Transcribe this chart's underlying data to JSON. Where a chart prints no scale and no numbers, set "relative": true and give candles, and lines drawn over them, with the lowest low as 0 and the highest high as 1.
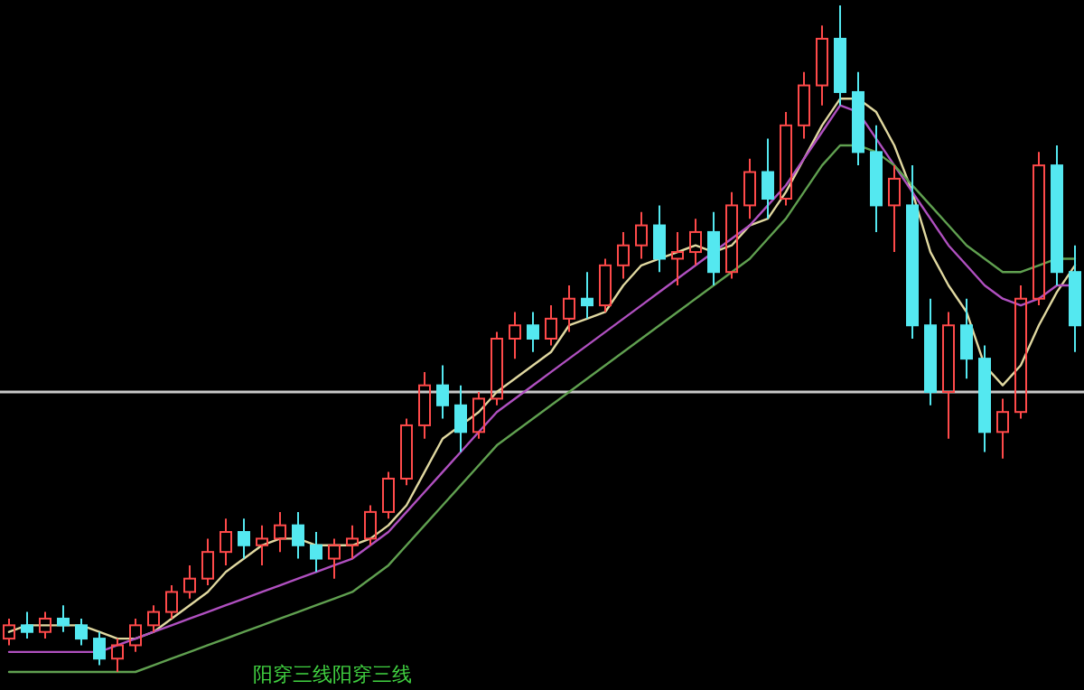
{
  "chart_data": {
    "type": "candlestick",
    "relative": true,
    "categories": [
      null,
      null,
      null,
      null,
      null,
      null,
      null,
      null,
      null,
      null,
      null,
      null,
      null,
      null,
      null,
      null,
      null,
      null,
      null,
      null,
      null,
      null,
      null,
      null,
      null,
      null,
      null,
      null,
      null,
      null,
      null,
      null,
      null,
      null,
      null,
      null,
      null,
      null,
      null,
      null,
      null,
      null,
      null,
      null,
      null,
      null,
      null,
      null,
      null,
      null,
      null,
      null,
      null,
      null,
      null,
      null,
      null,
      null,
      null,
      null
    ],
    "ohlc": [
      [
        0.05,
        0.08,
        0.04,
        0.07
      ],
      [
        0.07,
        0.09,
        0.05,
        0.06
      ],
      [
        0.06,
        0.09,
        0.05,
        0.08
      ],
      [
        0.08,
        0.1,
        0.06,
        0.07
      ],
      [
        0.07,
        0.08,
        0.04,
        0.05
      ],
      [
        0.05,
        0.06,
        0.01,
        0.02
      ],
      [
        0.02,
        0.05,
        0.0,
        0.04
      ],
      [
        0.04,
        0.08,
        0.03,
        0.07
      ],
      [
        0.07,
        0.1,
        0.06,
        0.09
      ],
      [
        0.09,
        0.13,
        0.08,
        0.12
      ],
      [
        0.12,
        0.16,
        0.11,
        0.14
      ],
      [
        0.14,
        0.2,
        0.13,
        0.18
      ],
      [
        0.18,
        0.23,
        0.16,
        0.21
      ],
      [
        0.21,
        0.23,
        0.17,
        0.19
      ],
      [
        0.19,
        0.22,
        0.16,
        0.2
      ],
      [
        0.2,
        0.24,
        0.18,
        0.22
      ],
      [
        0.22,
        0.24,
        0.17,
        0.19
      ],
      [
        0.19,
        0.21,
        0.15,
        0.17
      ],
      [
        0.17,
        0.2,
        0.14,
        0.19
      ],
      [
        0.19,
        0.22,
        0.17,
        0.2
      ],
      [
        0.2,
        0.25,
        0.19,
        0.24
      ],
      [
        0.24,
        0.3,
        0.23,
        0.29
      ],
      [
        0.29,
        0.38,
        0.28,
        0.37
      ],
      [
        0.37,
        0.45,
        0.35,
        0.43
      ],
      [
        0.43,
        0.46,
        0.38,
        0.4
      ],
      [
        0.4,
        0.43,
        0.33,
        0.36
      ],
      [
        0.36,
        0.42,
        0.35,
        0.41
      ],
      [
        0.41,
        0.51,
        0.4,
        0.5
      ],
      [
        0.5,
        0.54,
        0.47,
        0.52
      ],
      [
        0.52,
        0.54,
        0.48,
        0.5
      ],
      [
        0.5,
        0.55,
        0.49,
        0.53
      ],
      [
        0.53,
        0.58,
        0.51,
        0.56
      ],
      [
        0.56,
        0.6,
        0.53,
        0.55
      ],
      [
        0.55,
        0.62,
        0.54,
        0.61
      ],
      [
        0.61,
        0.66,
        0.59,
        0.64
      ],
      [
        0.64,
        0.69,
        0.62,
        0.67
      ],
      [
        0.67,
        0.7,
        0.6,
        0.62
      ],
      [
        0.62,
        0.66,
        0.58,
        0.63
      ],
      [
        0.63,
        0.68,
        0.61,
        0.66
      ],
      [
        0.66,
        0.69,
        0.58,
        0.6
      ],
      [
        0.6,
        0.72,
        0.59,
        0.7
      ],
      [
        0.7,
        0.77,
        0.68,
        0.75
      ],
      [
        0.75,
        0.8,
        0.68,
        0.71
      ],
      [
        0.71,
        0.84,
        0.7,
        0.82
      ],
      [
        0.82,
        0.9,
        0.8,
        0.88
      ],
      [
        0.88,
        0.97,
        0.85,
        0.95
      ],
      [
        0.95,
        1.0,
        0.85,
        0.87
      ],
      [
        0.87,
        0.9,
        0.76,
        0.78
      ],
      [
        0.78,
        0.82,
        0.66,
        0.7
      ],
      [
        0.7,
        0.76,
        0.63,
        0.74
      ],
      [
        0.7,
        0.76,
        0.5,
        0.52
      ],
      [
        0.52,
        0.56,
        0.4,
        0.42
      ],
      [
        0.42,
        0.54,
        0.35,
        0.52
      ],
      [
        0.52,
        0.56,
        0.44,
        0.47
      ],
      [
        0.47,
        0.49,
        0.33,
        0.36
      ],
      [
        0.36,
        0.41,
        0.32,
        0.39
      ],
      [
        0.39,
        0.58,
        0.38,
        0.56
      ],
      [
        0.56,
        0.78,
        0.55,
        0.76
      ],
      [
        0.76,
        0.79,
        0.58,
        0.6
      ],
      [
        0.6,
        0.64,
        0.48,
        0.52
      ]
    ],
    "series": [
      {
        "type": "line",
        "color": "#e0d8a0",
        "values": [
          0.06,
          0.07,
          0.07,
          0.07,
          0.07,
          0.06,
          0.05,
          0.05,
          0.06,
          0.08,
          0.1,
          0.12,
          0.15,
          0.17,
          0.19,
          0.2,
          0.2,
          0.19,
          0.19,
          0.19,
          0.2,
          0.22,
          0.25,
          0.3,
          0.35,
          0.37,
          0.39,
          0.42,
          0.44,
          0.46,
          0.48,
          0.52,
          0.53,
          0.54,
          0.58,
          0.61,
          0.62,
          0.63,
          0.64,
          0.63,
          0.64,
          0.67,
          0.68,
          0.72,
          0.77,
          0.82,
          0.86,
          0.86,
          0.84,
          0.79,
          0.72,
          0.63,
          0.58,
          0.54,
          0.46,
          0.43,
          0.46,
          0.52,
          0.57,
          0.61
        ]
      },
      {
        "type": "line",
        "color": "#b050c0",
        "values": [
          0.03,
          0.03,
          0.03,
          0.03,
          0.03,
          0.03,
          0.04,
          0.05,
          0.06,
          0.07,
          0.08,
          0.09,
          0.1,
          0.11,
          0.12,
          0.13,
          0.14,
          0.15,
          0.16,
          0.17,
          0.19,
          0.21,
          0.24,
          0.27,
          0.3,
          0.33,
          0.36,
          0.39,
          0.41,
          0.43,
          0.45,
          0.47,
          0.49,
          0.51,
          0.53,
          0.55,
          0.57,
          0.59,
          0.61,
          0.63,
          0.65,
          0.67,
          0.7,
          0.73,
          0.77,
          0.81,
          0.85,
          0.84,
          0.8,
          0.76,
          0.72,
          0.68,
          0.64,
          0.61,
          0.58,
          0.56,
          0.55,
          0.56,
          0.58,
          0.58
        ]
      },
      {
        "type": "line",
        "color": "#60a050",
        "values": [
          0.0,
          0.0,
          0.0,
          0.0,
          0.0,
          0.0,
          0.0,
          0.0,
          0.01,
          0.02,
          0.03,
          0.04,
          0.05,
          0.06,
          0.07,
          0.08,
          0.09,
          0.1,
          0.11,
          0.12,
          0.14,
          0.16,
          0.19,
          0.22,
          0.25,
          0.28,
          0.31,
          0.34,
          0.36,
          0.38,
          0.4,
          0.42,
          0.44,
          0.46,
          0.48,
          0.5,
          0.52,
          0.54,
          0.56,
          0.58,
          0.6,
          0.62,
          0.65,
          0.68,
          0.72,
          0.76,
          0.79,
          0.79,
          0.78,
          0.76,
          0.73,
          0.7,
          0.67,
          0.64,
          0.62,
          0.6,
          0.6,
          0.61,
          0.62,
          0.62
        ]
      }
    ],
    "ref_lines": [
      {
        "axis": "y",
        "value": 0.42,
        "color": "#c8c8c8"
      }
    ],
    "annotations": [
      "阳穿三线阳穿三线"
    ]
  }
}
